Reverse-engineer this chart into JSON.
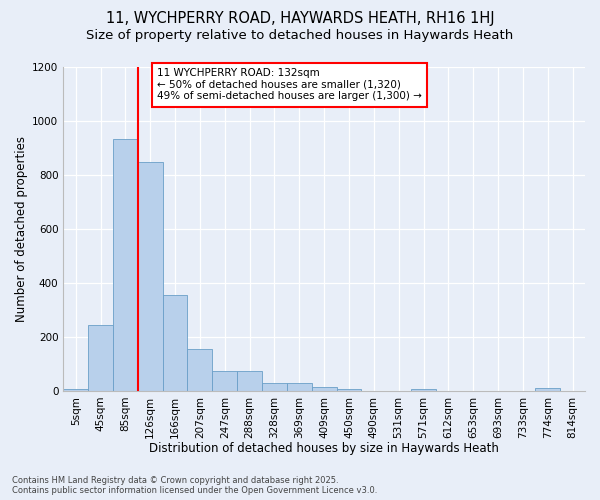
{
  "title_line1": "11, WYCHPERRY ROAD, HAYWARDS HEATH, RH16 1HJ",
  "title_line2": "Size of property relative to detached houses in Haywards Heath",
  "xlabel": "Distribution of detached houses by size in Haywards Heath",
  "ylabel": "Number of detached properties",
  "bar_labels": [
    "5sqm",
    "45sqm",
    "85sqm",
    "126sqm",
    "166sqm",
    "207sqm",
    "247sqm",
    "288sqm",
    "328sqm",
    "369sqm",
    "409sqm",
    "450sqm",
    "490sqm",
    "531sqm",
    "571sqm",
    "612sqm",
    "653sqm",
    "693sqm",
    "733sqm",
    "774sqm",
    "814sqm"
  ],
  "bar_values": [
    5,
    245,
    930,
    845,
    355,
    155,
    75,
    75,
    30,
    30,
    15,
    5,
    0,
    0,
    5,
    0,
    0,
    0,
    0,
    10,
    0
  ],
  "bar_color": "#b8d0eb",
  "bar_edgecolor": "#6a9fc8",
  "vline_index": 2.5,
  "vline_color": "red",
  "annotation_text": "11 WYCHPERRY ROAD: 132sqm\n← 50% of detached houses are smaller (1,320)\n49% of semi-detached houses are larger (1,300) →",
  "ylim": [
    0,
    1200
  ],
  "yticks": [
    0,
    200,
    400,
    600,
    800,
    1000,
    1200
  ],
  "background_color": "#e8eef8",
  "footer_text": "Contains HM Land Registry data © Crown copyright and database right 2025.\nContains public sector information licensed under the Open Government Licence v3.0.",
  "title_fontsize": 10.5,
  "subtitle_fontsize": 9.5,
  "axis_label_fontsize": 8.5,
  "tick_fontsize": 7.5,
  "annot_fontsize": 7.5
}
